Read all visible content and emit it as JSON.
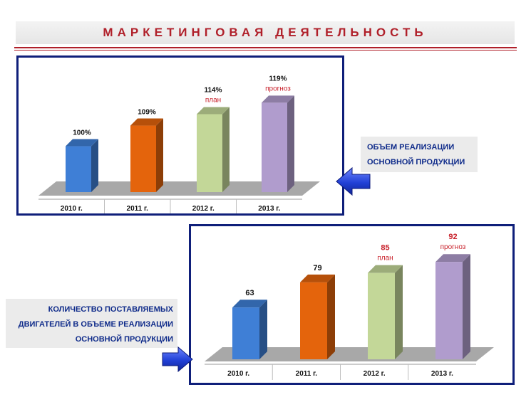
{
  "page_title": "МАРКЕТИНГОВАЯ ДЕЯТЕЛЬНОСТЬ",
  "colors": {
    "title": "#b0202a",
    "frame": "#0f1f7a",
    "caption_text": "#0f2b8a",
    "note_text": "#c8202a",
    "bar_colors": [
      "#3f7fd6",
      "#e4640c",
      "#c3d798",
      "#b09ccd"
    ],
    "arrow": "#2a46d8"
  },
  "captions": {
    "chart1": [
      "ОБЪЕМ РЕАЛИЗАЦИИ",
      "ОСНОВНОЙ ПРОДУКЦИИ"
    ],
    "chart2": [
      "КОЛИЧЕСТВО ПОСТАВЛЯЕМЫХ",
      "ДВИГАТЕЛЕЙ В ОБЪЕМЕ РЕАЛИЗАЦИИ",
      "ОСНОВНОЙ ПРОДУКЦИИ"
    ]
  },
  "icons": {
    "arrow1": "arrow-left-icon",
    "arrow2": "arrow-right-icon"
  },
  "chart_data": [
    {
      "type": "bar",
      "categories": [
        "2010 г.",
        "2011 г.",
        "2012 г.",
        "2013 г."
      ],
      "values": [
        100,
        109,
        114,
        119
      ],
      "value_labels": [
        "100%",
        "109%",
        "114%",
        "119%"
      ],
      "notes": [
        "",
        "",
        "план",
        "прогноз"
      ],
      "ylim": [
        80,
        125
      ]
    },
    {
      "type": "bar",
      "categories": [
        "2010 г.",
        "2011 г.",
        "2012 г.",
        "2013 г."
      ],
      "values": [
        63,
        79,
        85,
        92
      ],
      "value_labels": [
        "63",
        "79",
        "85",
        "92"
      ],
      "notes": [
        "",
        "",
        "план",
        "прогноз"
      ],
      "ylim": [
        30,
        98
      ]
    }
  ]
}
